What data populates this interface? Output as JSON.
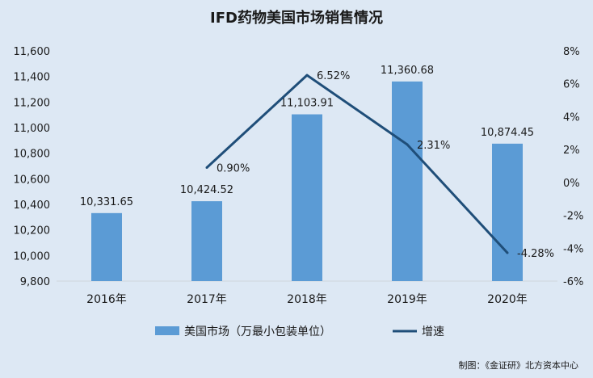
{
  "chart_data": {
    "type": "bar+line",
    "title": "IFD药物美国市场销售情况",
    "categories": [
      "2016年",
      "2017年",
      "2018年",
      "2019年",
      "2020年"
    ],
    "series": [
      {
        "name": "美国市场（万最小包装单位）",
        "type": "bar",
        "axis": "left",
        "values": [
          10331.65,
          10424.52,
          11103.91,
          11360.68,
          10874.45
        ],
        "labels": [
          "10,331.65",
          "10,424.52",
          "11,103.91",
          "11,360.68",
          "10,874.45"
        ],
        "color": "#5b9bd5"
      },
      {
        "name": "增速",
        "type": "line",
        "axis": "right",
        "values": [
          null,
          0.9,
          6.52,
          2.31,
          -4.28
        ],
        "labels": [
          "",
          "0.90%",
          "6.52%",
          "2.31%",
          "-4.28%"
        ],
        "color": "#1f4e79"
      }
    ],
    "y_left": {
      "min": 9800,
      "max": 11600,
      "ticks": [
        "9,800",
        "10,000",
        "10,200",
        "10,400",
        "10,600",
        "10,800",
        "11,000",
        "11,200",
        "11,400",
        "11,600"
      ]
    },
    "y_right": {
      "min": -6,
      "max": 8,
      "ticks": [
        "-6%",
        "-4%",
        "-2%",
        "0%",
        "2%",
        "4%",
        "6%",
        "8%"
      ]
    },
    "grid": false,
    "legend_position": "bottom"
  },
  "source": "制图：《金证研》北方资本中心"
}
